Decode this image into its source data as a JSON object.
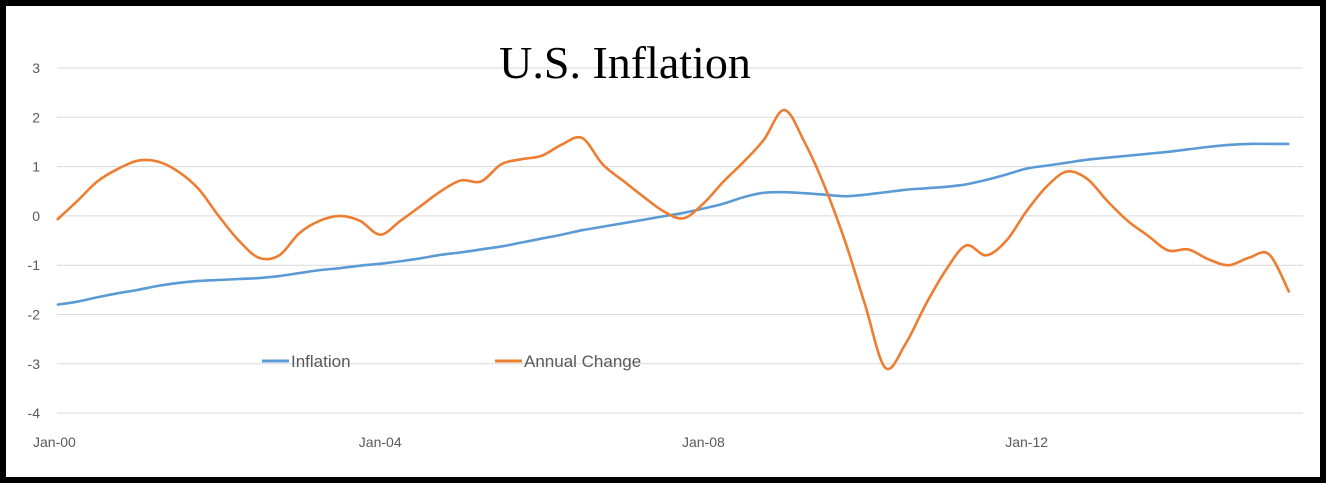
{
  "chart_data": {
    "type": "line",
    "title": "U.S. Inflation",
    "xlabel": "",
    "ylabel": "",
    "ylim": [
      -4,
      3
    ],
    "y_ticks": [
      "3",
      "2",
      "1",
      "0",
      "-1",
      "-2",
      "-3",
      "-4"
    ],
    "x_ticks": [
      "Jan-00",
      "Jan-04",
      "Jan-08",
      "Jan-12"
    ],
    "grid": true,
    "legend_position": "bottom-left",
    "x": [
      "2000-01",
      "2000-04",
      "2000-07",
      "2000-10",
      "2001-01",
      "2001-04",
      "2001-07",
      "2001-10",
      "2002-01",
      "2002-04",
      "2002-07",
      "2002-10",
      "2003-01",
      "2003-04",
      "2003-07",
      "2003-10",
      "2004-01",
      "2004-04",
      "2004-07",
      "2004-10",
      "2005-01",
      "2005-04",
      "2005-07",
      "2005-10",
      "2006-01",
      "2006-04",
      "2006-07",
      "2006-10",
      "2007-01",
      "2007-04",
      "2007-07",
      "2007-10",
      "2008-01",
      "2008-04",
      "2008-07",
      "2008-10",
      "2009-01",
      "2009-04",
      "2009-07",
      "2009-10",
      "2010-01",
      "2010-04",
      "2010-07",
      "2010-10",
      "2011-01",
      "2011-04",
      "2011-07",
      "2011-10",
      "2012-01",
      "2012-04",
      "2012-07",
      "2012-10",
      "2013-01",
      "2013-04",
      "2013-07",
      "2013-10",
      "2014-01",
      "2014-04",
      "2014-07",
      "2014-10",
      "2015-01",
      "2015-04"
    ],
    "series": [
      {
        "name": "Inflation",
        "color": "#5b9bd5",
        "values": [
          -1.8,
          -1.74,
          -1.65,
          -1.57,
          -1.5,
          -1.42,
          -1.36,
          -1.32,
          -1.3,
          -1.28,
          -1.26,
          -1.22,
          -1.16,
          -1.1,
          -1.06,
          -1.01,
          -0.97,
          -0.92,
          -0.86,
          -0.79,
          -0.74,
          -0.68,
          -0.62,
          -0.54,
          -0.46,
          -0.38,
          -0.29,
          -0.22,
          -0.15,
          -0.08,
          -0.01,
          0.06,
          0.15,
          0.25,
          0.38,
          0.47,
          0.48,
          0.46,
          0.43,
          0.4,
          0.43,
          0.48,
          0.53,
          0.56,
          0.59,
          0.64,
          0.73,
          0.84,
          0.96,
          1.02,
          1.08,
          1.14,
          1.18,
          1.22,
          1.26,
          1.3,
          1.35,
          1.4,
          1.44,
          1.46,
          1.46,
          1.46
        ]
      },
      {
        "name": "Annual Change",
        "color": "#ed7d31",
        "values": [
          -0.08,
          0.3,
          0.7,
          0.95,
          1.12,
          1.1,
          0.9,
          0.55,
          0.0,
          -0.5,
          -0.85,
          -0.8,
          -0.35,
          -0.1,
          0.0,
          -0.1,
          -0.38,
          -0.1,
          0.2,
          0.5,
          0.72,
          0.7,
          1.05,
          1.15,
          1.22,
          1.45,
          1.58,
          1.05,
          0.72,
          0.4,
          0.1,
          -0.05,
          0.25,
          0.7,
          1.1,
          1.55,
          2.15,
          1.5,
          0.6,
          -0.5,
          -1.8,
          -3.08,
          -2.6,
          -1.8,
          -1.1,
          -0.6,
          -0.8,
          -0.5,
          0.1,
          0.6,
          0.9,
          0.75,
          0.3,
          -0.1,
          -0.4,
          -0.7,
          -0.68,
          -0.88,
          -1.0,
          -0.85,
          -0.78,
          -1.55
        ]
      }
    ]
  }
}
